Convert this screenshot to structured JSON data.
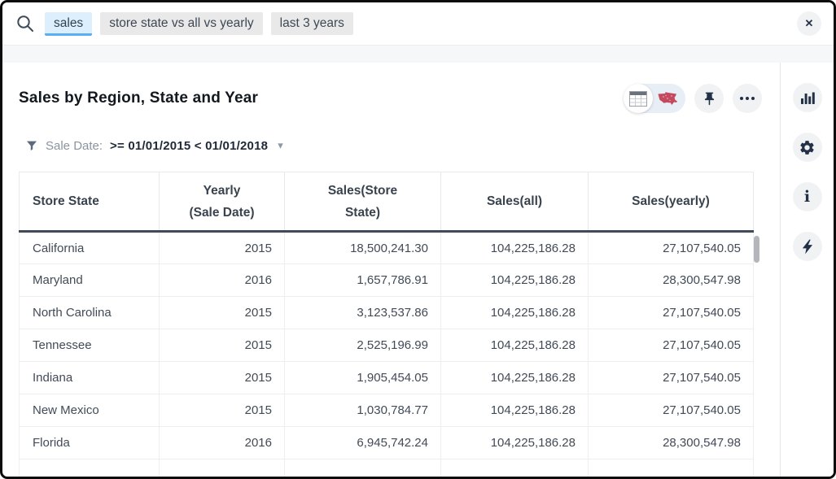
{
  "search": {
    "tokens": [
      {
        "label": "sales"
      },
      {
        "label": "store state vs all vs yearly"
      },
      {
        "label": "last 3 years"
      }
    ],
    "icons": {
      "search": "magnifier",
      "close": "✕"
    }
  },
  "answer": {
    "title": "Sales by Region, State and Year",
    "filter": {
      "label": "Sale Date:",
      "value": ">= 01/01/2015 < 01/01/2018",
      "caret": "▾"
    },
    "actions": {
      "viz_toggle": {
        "selected": "table-view",
        "other": "map-view"
      },
      "pin": "pin-icon",
      "more": "ellipsis-icon"
    }
  },
  "table": {
    "columns": [
      {
        "label": "Store State",
        "label2": ""
      },
      {
        "label": "Yearly",
        "label2": "(Sale Date)"
      },
      {
        "label": "Sales(Store",
        "label2": "State)"
      },
      {
        "label": "Sales(all)",
        "label2": ""
      },
      {
        "label": "Sales(yearly)",
        "label2": ""
      }
    ],
    "rows": [
      [
        "California",
        "2015",
        "18,500,241.30",
        "104,225,186.28",
        "27,107,540.05"
      ],
      [
        "Maryland",
        "2016",
        "1,657,786.91",
        "104,225,186.28",
        "28,300,547.98"
      ],
      [
        "North Carolina",
        "2015",
        "3,123,537.86",
        "104,225,186.28",
        "27,107,540.05"
      ],
      [
        "Tennessee",
        "2015",
        "2,525,196.99",
        "104,225,186.28",
        "27,107,540.05"
      ],
      [
        "Indiana",
        "2015",
        "1,905,454.05",
        "104,225,186.28",
        "27,107,540.05"
      ],
      [
        "New Mexico",
        "2015",
        "1,030,784.77",
        "104,225,186.28",
        "27,107,540.05"
      ],
      [
        "Florida",
        "2016",
        "6,945,742.24",
        "104,225,186.28",
        "28,300,547.98"
      ]
    ]
  },
  "rail_icons": [
    "chart-icon",
    "gear-icon",
    "info-icon",
    "lightning-icon"
  ],
  "colors": {
    "token_active_bg": "#ddeffd",
    "token_active_underline": "#58aff4",
    "token_bg": "#e9e9ea",
    "header_border": "#3f4b5b",
    "map_icon_red": "#c4485e",
    "icon_dark": "#233146",
    "circle_bg": "#f1f2f4"
  }
}
